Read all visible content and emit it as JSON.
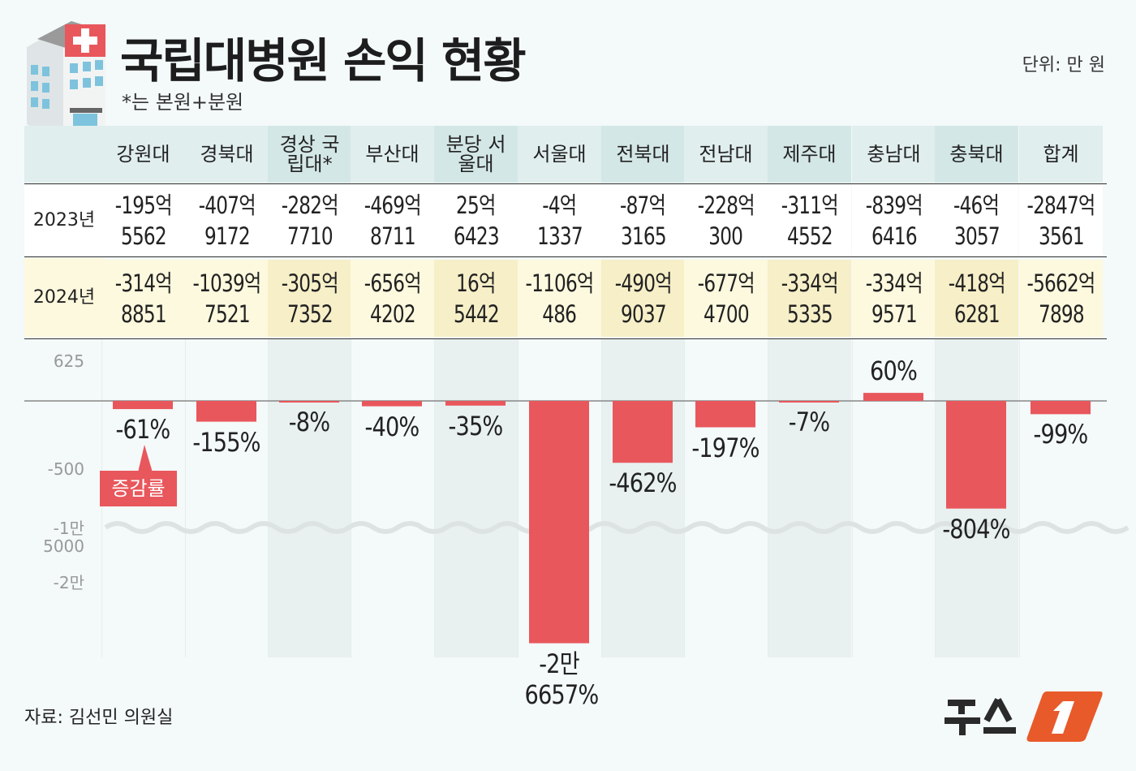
{
  "header": {
    "title": "국립대병원 손익 현황",
    "subtitle": "*는 본원+분원",
    "unit": "단위: 만 원"
  },
  "row_labels": {
    "y2023": "2023년",
    "y2024": "2024년"
  },
  "callout": "증감률",
  "source": "자료: 김선민 의원실",
  "logo": "뉴스1",
  "colors": {
    "bar": "#e8575c",
    "header": "#e0eeed",
    "row2024": "#fdf9de"
  },
  "chart_data": {
    "type": "bar",
    "title": "국립대병원 손익 현황",
    "ylabel": "",
    "y_ticks": [
      "625",
      "-500",
      "-1만 5000",
      "-2만"
    ],
    "y_break": true,
    "categories": [
      "강원대",
      "경북대",
      "경상 국립대*",
      "부산대",
      "분당 서울대",
      "서울대",
      "전북대",
      "전남대",
      "제주대",
      "충남대",
      "충북대",
      "합계"
    ],
    "table": {
      "y2023": [
        [
          "-195억",
          "5562"
        ],
        [
          "-407억",
          "9172"
        ],
        [
          "-282억",
          "7710"
        ],
        [
          "-469억",
          "8711"
        ],
        [
          "25억",
          "6423"
        ],
        [
          "-4억",
          "1337"
        ],
        [
          "-87억",
          "3165"
        ],
        [
          "-228억",
          "300"
        ],
        [
          "-311억",
          "4552"
        ],
        [
          "-839억",
          "6416"
        ],
        [
          "-46억",
          "3057"
        ],
        [
          "-2847억",
          "3561"
        ]
      ],
      "y2024": [
        [
          "-314억",
          "8851"
        ],
        [
          "-1039억",
          "7521"
        ],
        [
          "-305억",
          "7352"
        ],
        [
          "-656억",
          "4202"
        ],
        [
          "16억",
          "5442"
        ],
        [
          "-1106억",
          "486"
        ],
        [
          "-490억",
          "9037"
        ],
        [
          "-677억",
          "4700"
        ],
        [
          "-334억",
          "5335"
        ],
        [
          "-334억",
          "9571"
        ],
        [
          "-418억",
          "6281"
        ],
        [
          "-5662억",
          "7898"
        ]
      ]
    },
    "series": [
      {
        "name": "증감률",
        "values": [
          -61,
          -155,
          -8,
          -40,
          -35,
          -26657,
          -462,
          -197,
          -7,
          60,
          -804,
          -99
        ]
      }
    ],
    "labels": [
      "-61%",
      "-155%",
      "-8%",
      "-40%",
      "-35%",
      "-2만 6657%",
      "-462%",
      "-197%",
      "-7%",
      "60%",
      "-804%",
      "-99%"
    ]
  }
}
